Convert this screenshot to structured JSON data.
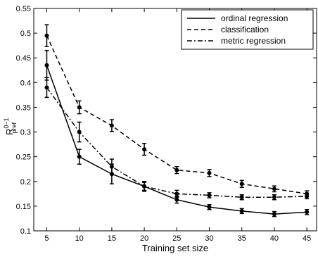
{
  "chart_data": {
    "type": "line",
    "xlabel": "Training set size",
    "ylabel": {
      "main": "R",
      "sup": "0−1",
      "sub": "pref"
    },
    "x": [
      5,
      10,
      15,
      20,
      25,
      30,
      35,
      40,
      45
    ],
    "series": [
      {
        "name": "ordinal regression",
        "color": "#000000",
        "dash": "solid",
        "values": [
          0.435,
          0.25,
          0.215,
          0.19,
          0.163,
          0.148,
          0.14,
          0.134,
          0.138
        ],
        "errors": [
          0.03,
          0.015,
          0.02,
          0.01,
          0.007,
          0.005,
          0.005,
          0.005,
          0.005
        ]
      },
      {
        "name": "classification",
        "color": "#000000",
        "dash": "dashed",
        "values": [
          0.495,
          0.35,
          0.313,
          0.265,
          0.223,
          0.217,
          0.195,
          0.185,
          0.175
        ],
        "errors": [
          0.022,
          0.013,
          0.012,
          0.012,
          0.007,
          0.007,
          0.007,
          0.006,
          0.006
        ]
      },
      {
        "name": "metric regression",
        "color": "#000000",
        "dash": "dashdot",
        "values": [
          0.39,
          0.3,
          0.23,
          0.19,
          0.175,
          0.172,
          0.168,
          0.168,
          0.17
        ],
        "errors": [
          0.02,
          0.02,
          0.015,
          0.008,
          0.007,
          0.005,
          0.005,
          0.005,
          0.005
        ]
      }
    ],
    "xlim": [
      3,
      46.5
    ],
    "xticks": [
      5,
      10,
      15,
      20,
      25,
      30,
      35,
      40,
      45
    ],
    "ylim": [
      0.1,
      0.55
    ],
    "yticks": [
      0.1,
      0.15,
      0.2,
      0.25,
      0.3,
      0.35,
      0.4,
      0.45,
      0.5,
      0.55
    ],
    "legend": "upper right",
    "grid": false
  }
}
